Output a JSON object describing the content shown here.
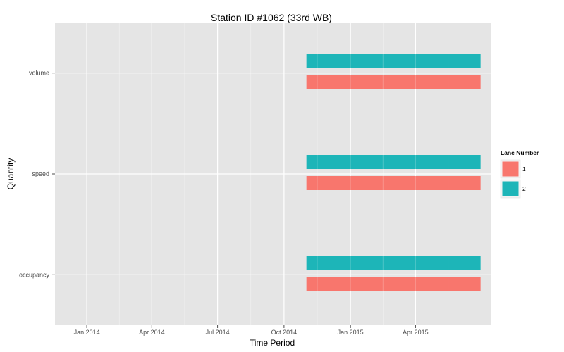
{
  "chart_data": {
    "type": "bar",
    "orientation": "horizontal",
    "title": "Station ID #1062 (33rd WB)",
    "xlabel": "Time Period",
    "ylabel": "Quantity",
    "x_range": [
      "2013-11-18",
      "2015-07-14"
    ],
    "x_ticks": [
      {
        "date": "2014-01-01",
        "label": "Jan 2014"
      },
      {
        "date": "2014-04-01",
        "label": "Apr 2014"
      },
      {
        "date": "2014-07-01",
        "label": "Jul 2014"
      },
      {
        "date": "2014-10-01",
        "label": "Oct 2014"
      },
      {
        "date": "2015-01-01",
        "label": "Jan 2015"
      },
      {
        "date": "2015-04-01",
        "label": "Apr 2015"
      }
    ],
    "categories": [
      "volume",
      "speed",
      "occupancy"
    ],
    "legend": {
      "title": "Lane Number",
      "position": "right",
      "entries": [
        {
          "label": "1",
          "color": "#f8766d"
        },
        {
          "label": "2",
          "color": "#1db5b8"
        }
      ]
    },
    "grid": true,
    "series": [
      {
        "name": "1",
        "color": "#f8766d",
        "bars": [
          {
            "category": "volume",
            "start": "2014-11-01",
            "end": "2015-06-30"
          },
          {
            "category": "speed",
            "start": "2014-11-01",
            "end": "2015-06-30"
          },
          {
            "category": "occupancy",
            "start": "2014-11-01",
            "end": "2015-06-30"
          }
        ]
      },
      {
        "name": "2",
        "color": "#1db5b8",
        "bars": [
          {
            "category": "volume",
            "start": "2014-11-01",
            "end": "2015-06-30"
          },
          {
            "category": "speed",
            "start": "2014-11-01",
            "end": "2015-06-30"
          },
          {
            "category": "occupancy",
            "start": "2014-11-01",
            "end": "2015-06-30"
          }
        ]
      }
    ]
  }
}
